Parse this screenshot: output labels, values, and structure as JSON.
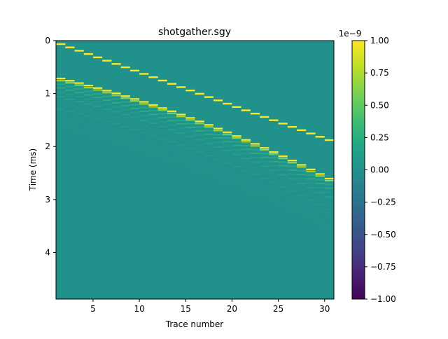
{
  "chart_data": {
    "type": "heatmap",
    "title": "shotgather.sgy",
    "xlabel": "Trace number",
    "ylabel": "Time (ms)",
    "x_range": [
      1,
      31
    ],
    "y_range": [
      0,
      4.88
    ],
    "y_inverted": true,
    "x_ticks": [
      5,
      10,
      15,
      20,
      25,
      30
    ],
    "y_ticks": [
      0,
      1,
      2,
      3,
      4
    ],
    "colormap": "viridis",
    "colorbar": {
      "range": [
        -1.0,
        1.0
      ],
      "ticks": [
        "1.00",
        "0.75",
        "0.50",
        "0.25",
        "0.00",
        "−0.25",
        "−0.50",
        "−0.75",
        "−1.00"
      ],
      "exponent_label": "1e−9"
    },
    "traces": 30,
    "direct_arrival": {
      "t0_ms": 0.05,
      "slope_ms_per_trace": 0.0625,
      "amplitude": 1.0
    },
    "reflection": {
      "t0_ms": 0.7,
      "velocity_term": 0.042,
      "amplitude": 1.0
    },
    "background_value": 0.0
  }
}
